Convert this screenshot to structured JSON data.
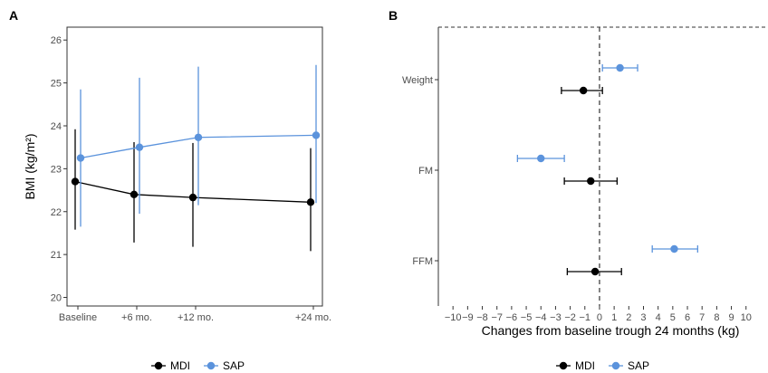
{
  "colors": {
    "MDI": "#000000",
    "SAP": "#5b93dc"
  },
  "chart_data": [
    {
      "panel": "A",
      "type": "line",
      "xlabel": "",
      "ylabel": "BMI (kg/m²)",
      "categories": [
        "Baseline",
        "+6 mo.",
        "+12 mo.",
        "+24 mo."
      ],
      "x_months": [
        0,
        6,
        12,
        24
      ],
      "ylim": [
        19.8,
        26.3
      ],
      "yticks": [
        "20",
        "21",
        "22",
        "23",
        "24",
        "25",
        "26"
      ],
      "series": [
        {
          "name": "MDI",
          "values": [
            22.7,
            22.4,
            22.33,
            22.22
          ],
          "lower": [
            21.58,
            21.28,
            21.18,
            21.08
          ],
          "upper": [
            23.92,
            23.62,
            23.6,
            23.48
          ]
        },
        {
          "name": "SAP",
          "values": [
            23.25,
            23.5,
            23.73,
            23.78
          ],
          "lower": [
            21.65,
            21.95,
            22.15,
            22.2
          ],
          "upper": [
            24.85,
            25.12,
            25.38,
            25.42
          ]
        }
      ],
      "legend": [
        "MDI",
        "SAP"
      ],
      "legend_position": "bottom",
      "grid": false
    },
    {
      "panel": "B",
      "type": "scatter",
      "xlabel": "Changes from baseline trough 24 months (kg)",
      "ylabel": "",
      "categories": [
        "Weight",
        "FM",
        "FFM"
      ],
      "xlim": [
        -11,
        11.5
      ],
      "xticks": [
        "-10",
        "-9",
        "-8",
        "-7",
        "-6",
        "-5",
        "-4",
        "-3",
        "-2",
        "-1",
        "0",
        "1",
        "2",
        "3",
        "4",
        "5",
        "6",
        "7",
        "8",
        "9",
        "10"
      ],
      "reference_line": 0,
      "series": [
        {
          "name": "MDI",
          "values": [
            -1.1,
            -0.6,
            -0.3
          ],
          "lower": [
            -2.6,
            -2.4,
            -2.2
          ],
          "upper": [
            0.2,
            1.2,
            1.5
          ]
        },
        {
          "name": "SAP",
          "values": [
            1.4,
            -4.0,
            5.1
          ],
          "lower": [
            0.2,
            -5.6,
            3.6
          ],
          "upper": [
            2.6,
            -2.4,
            6.7
          ]
        }
      ],
      "legend": [
        "MDI",
        "SAP"
      ],
      "legend_position": "bottom",
      "grid": false
    }
  ]
}
